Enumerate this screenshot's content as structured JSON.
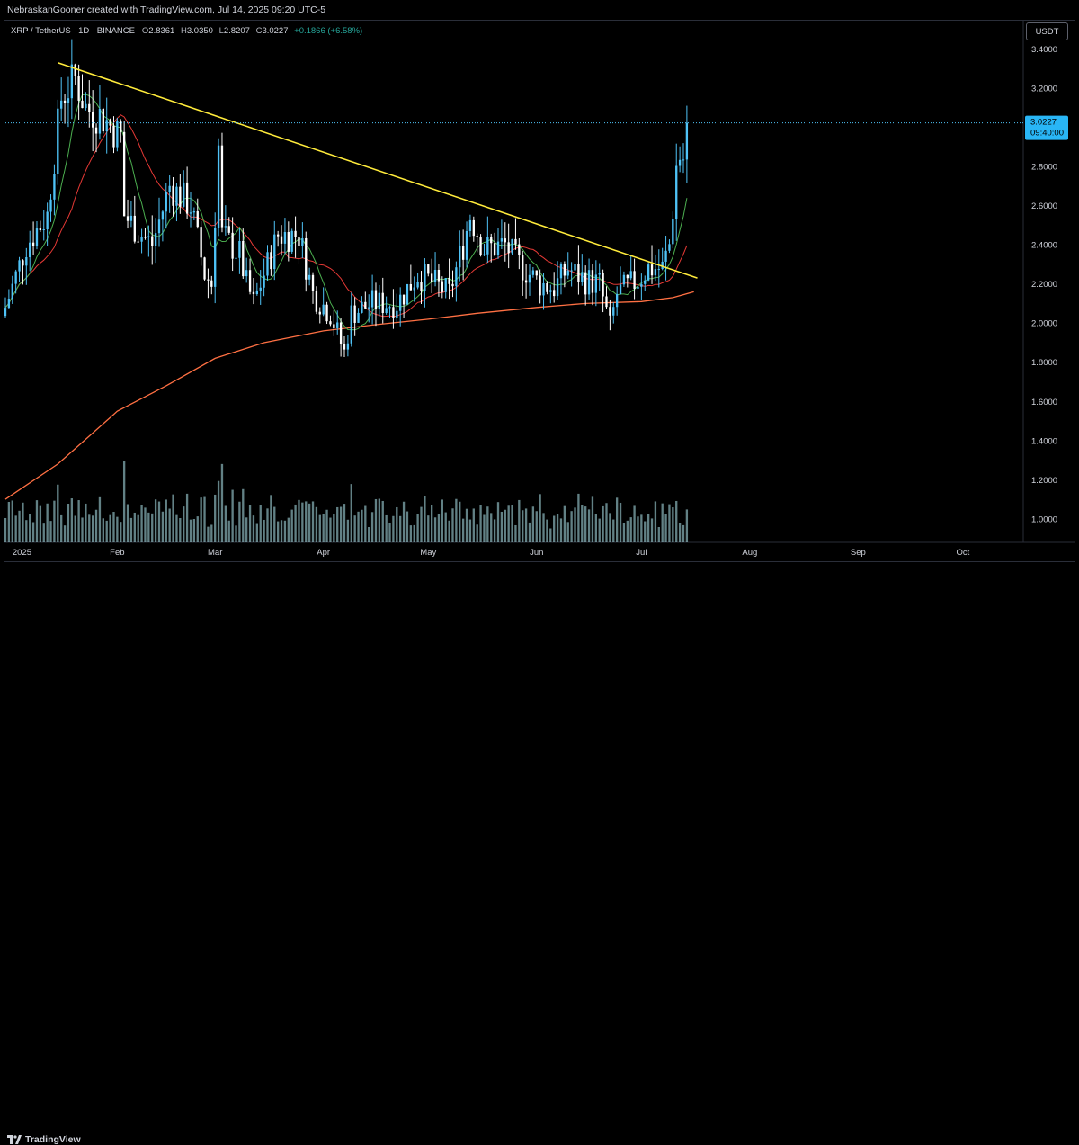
{
  "header": {
    "credit": "NebraskanGooner created with TradingView.com, Jul 14, 2025 09:20 UTC-5"
  },
  "legend": {
    "symbol": "XRP / TetherUS · 1D · BINANCE",
    "open_label": "O",
    "open": "2.8361",
    "high_label": "H",
    "high": "3.0350",
    "low_label": "L",
    "low": "2.8207",
    "close_label": "C",
    "close": "3.0227",
    "change": "+0.1866 (+6.58%)"
  },
  "currency": "USDT",
  "price_tag": {
    "price": "3.0227",
    "time": "09:40:00"
  },
  "brand": "TradingView",
  "colors": {
    "up": "#4fc3f7",
    "down": "#ffffff",
    "trendline": "#ffeb3b",
    "ma_short": "#4caf50",
    "ma_mid": "#e53935",
    "ma_long": "#ff7043",
    "volume": "#b2ebf2",
    "price_line": "#4fc3f7"
  },
  "chart_data": {
    "type": "candlestick",
    "symbol": "XRP / TetherUS",
    "interval": "1D",
    "exchange": "BINANCE",
    "y_ticks": [
      "3.4000",
      "3.2000",
      "3.0000",
      "2.8000",
      "2.6000",
      "2.4000",
      "2.2000",
      "2.0000",
      "1.8000",
      "1.6000",
      "1.4000",
      "1.2000",
      "1.0000"
    ],
    "ylim": [
      0.88,
      3.54
    ],
    "x_ticks": [
      "2025",
      "Feb",
      "Mar",
      "Apr",
      "May",
      "Jun",
      "Jul",
      "Aug",
      "Sep",
      "Oct"
    ],
    "x_tick_dates": [
      "2025-01-01",
      "2025-02-01",
      "2025-03-01",
      "2025-04-01",
      "2025-05-01",
      "2025-06-01",
      "2025-07-01",
      "2025-08-01",
      "2025-09-01",
      "2025-10-01"
    ],
    "x_range": [
      "2024-12-31",
      "2025-10-18"
    ],
    "last_price": 3.0227,
    "price_anchors": [
      {
        "date": "2024-12-31",
        "value": 2.08
      },
      {
        "date": "2025-01-06",
        "value": 2.4
      },
      {
        "date": "2025-01-12",
        "value": 2.55
      },
      {
        "date": "2025-01-16",
        "value": 3.15
      },
      {
        "date": "2025-01-20",
        "value": 3.25
      },
      {
        "date": "2025-01-23",
        "value": 3.1
      },
      {
        "date": "2025-01-28",
        "value": 3.05
      },
      {
        "date": "2025-02-02",
        "value": 2.95
      },
      {
        "date": "2025-02-03",
        "value": 2.55
      },
      {
        "date": "2025-02-08",
        "value": 2.45
      },
      {
        "date": "2025-02-11",
        "value": 2.4
      },
      {
        "date": "2025-02-16",
        "value": 2.7
      },
      {
        "date": "2025-02-22",
        "value": 2.6
      },
      {
        "date": "2025-02-26",
        "value": 2.25
      },
      {
        "date": "2025-02-28",
        "value": 2.2
      },
      {
        "date": "2025-03-02",
        "value": 2.9
      },
      {
        "date": "2025-03-03",
        "value": 2.45
      },
      {
        "date": "2025-03-08",
        "value": 2.35
      },
      {
        "date": "2025-03-10",
        "value": 2.2
      },
      {
        "date": "2025-03-12",
        "value": 2.1
      },
      {
        "date": "2025-03-19",
        "value": 2.45
      },
      {
        "date": "2025-03-25",
        "value": 2.45
      },
      {
        "date": "2025-03-29",
        "value": 2.15
      },
      {
        "date": "2025-04-03",
        "value": 2.05
      },
      {
        "date": "2025-04-07",
        "value": 1.85
      },
      {
        "date": "2025-04-09",
        "value": 2.05
      },
      {
        "date": "2025-04-15",
        "value": 2.1
      },
      {
        "date": "2025-04-22",
        "value": 2.1
      },
      {
        "date": "2025-04-28",
        "value": 2.25
      },
      {
        "date": "2025-05-03",
        "value": 2.2
      },
      {
        "date": "2025-05-07",
        "value": 2.15
      },
      {
        "date": "2025-05-11",
        "value": 2.4
      },
      {
        "date": "2025-05-13",
        "value": 2.55
      },
      {
        "date": "2025-05-17",
        "value": 2.38
      },
      {
        "date": "2025-05-23",
        "value": 2.4
      },
      {
        "date": "2025-05-27",
        "value": 2.3
      },
      {
        "date": "2025-06-02",
        "value": 2.2
      },
      {
        "date": "2025-06-06",
        "value": 2.18
      },
      {
        "date": "2025-06-10",
        "value": 2.28
      },
      {
        "date": "2025-06-15",
        "value": 2.22
      },
      {
        "date": "2025-06-19",
        "value": 2.2
      },
      {
        "date": "2025-06-22",
        "value": 1.98
      },
      {
        "date": "2025-06-24",
        "value": 2.15
      },
      {
        "date": "2025-06-30",
        "value": 2.22
      },
      {
        "date": "2025-07-03",
        "value": 2.28
      },
      {
        "date": "2025-07-07",
        "value": 2.28
      },
      {
        "date": "2025-07-09",
        "value": 2.4
      },
      {
        "date": "2025-07-10",
        "value": 2.58
      },
      {
        "date": "2025-07-11",
        "value": 2.8
      },
      {
        "date": "2025-07-12",
        "value": 2.85
      },
      {
        "date": "2025-07-13",
        "value": 2.84
      },
      {
        "date": "2025-07-14",
        "value": 3.0227
      }
    ],
    "trendline": {
      "start": {
        "date": "2025-01-15",
        "value": 3.33
      },
      "end": {
        "date": "2025-07-17",
        "value": 2.23
      }
    },
    "ma_long_anchors": [
      {
        "date": "2024-12-31",
        "value": 1.1
      },
      {
        "date": "2025-01-15",
        "value": 1.28
      },
      {
        "date": "2025-02-01",
        "value": 1.55
      },
      {
        "date": "2025-02-15",
        "value": 1.68
      },
      {
        "date": "2025-03-01",
        "value": 1.82
      },
      {
        "date": "2025-03-15",
        "value": 1.9
      },
      {
        "date": "2025-04-01",
        "value": 1.96
      },
      {
        "date": "2025-04-15",
        "value": 1.99
      },
      {
        "date": "2025-05-01",
        "value": 2.02
      },
      {
        "date": "2025-05-15",
        "value": 2.05
      },
      {
        "date": "2025-06-01",
        "value": 2.08
      },
      {
        "date": "2025-06-15",
        "value": 2.1
      },
      {
        "date": "2025-07-01",
        "value": 2.11
      },
      {
        "date": "2025-07-10",
        "value": 2.13
      },
      {
        "date": "2025-07-16",
        "value": 2.16
      }
    ]
  }
}
